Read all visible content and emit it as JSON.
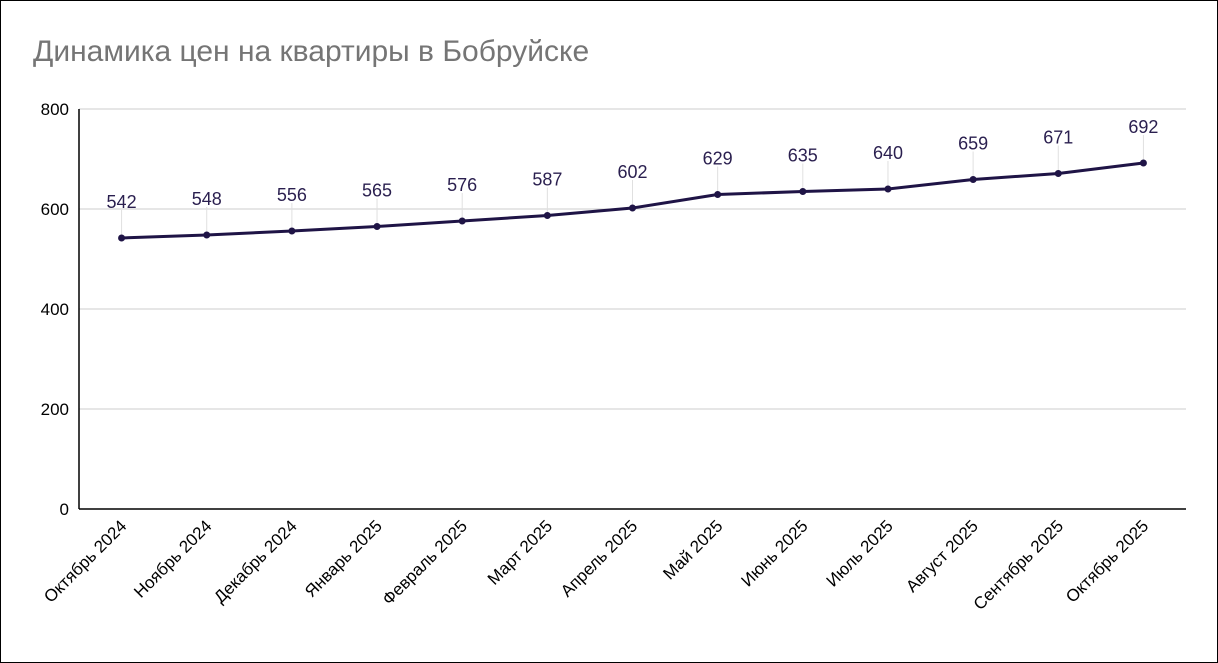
{
  "chart_data": {
    "type": "line",
    "title": "Динамика цен на квартиры в Бобруйске",
    "categories": [
      "Октябрь 2024",
      "Ноябрь 2024",
      "Декабрь 2024",
      "Январь 2025",
      "Февраль 2025",
      "Март 2025",
      "Апрель 2025",
      "Май 2025",
      "Июнь 2025",
      "Июль 2025",
      "Август 2025",
      "Сентябрь 2025",
      "Октябрь 2025"
    ],
    "values": [
      542,
      548,
      556,
      565,
      576,
      587,
      602,
      629,
      635,
      640,
      659,
      671,
      692
    ],
    "ylim": [
      0,
      800
    ],
    "yticks": [
      "0",
      "200",
      "400",
      "600",
      "800"
    ],
    "xlabel": "",
    "ylabel": "",
    "grid": true,
    "data_labels": true,
    "line_color": "#1f1446",
    "title_color": "#757575"
  }
}
